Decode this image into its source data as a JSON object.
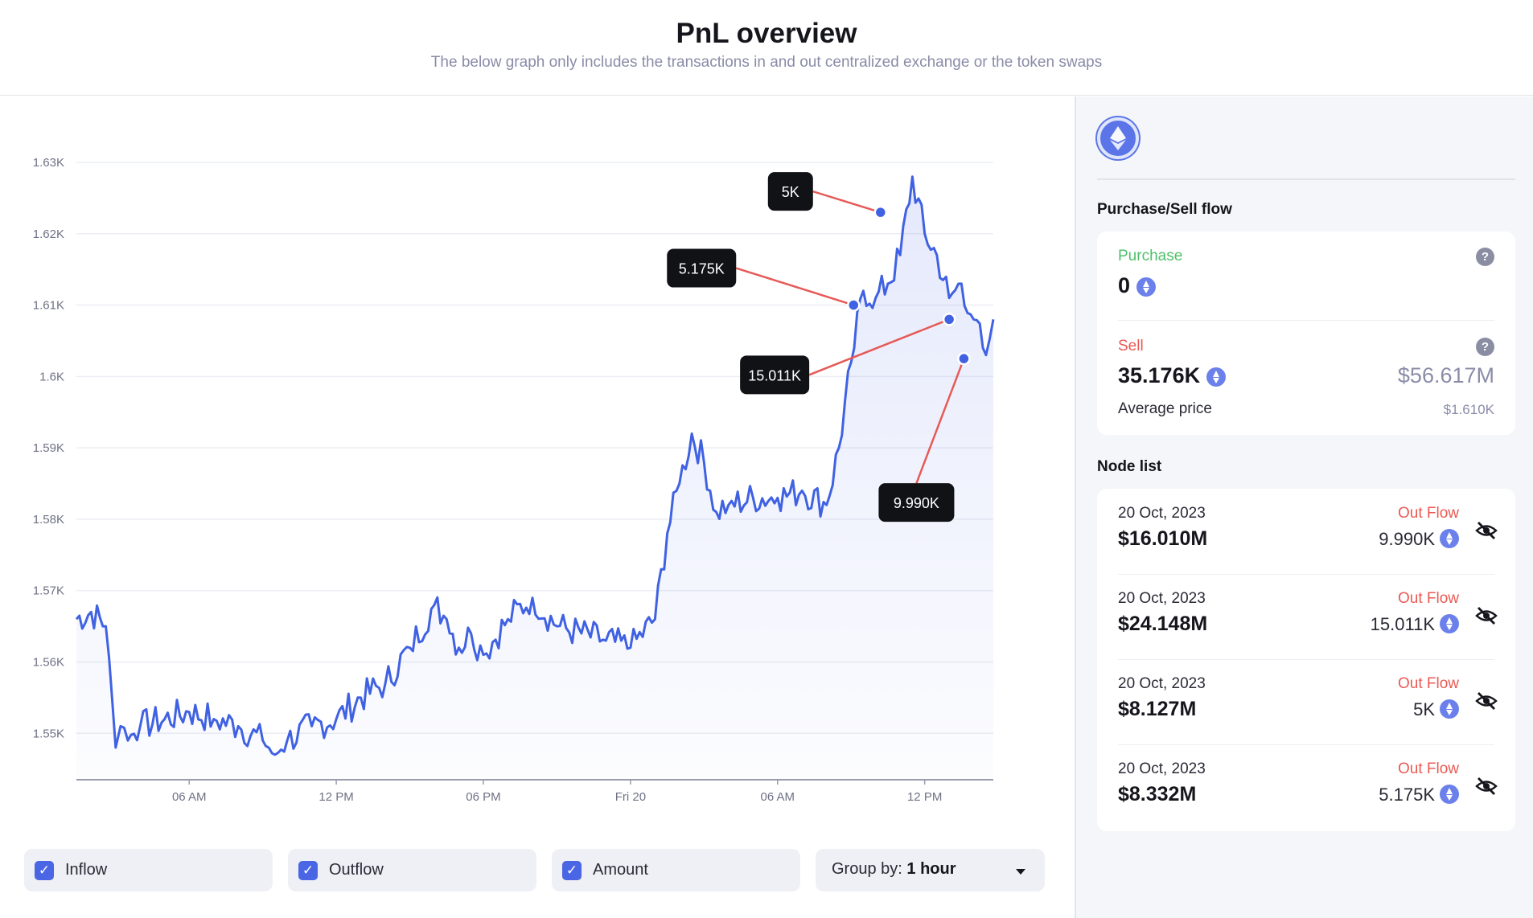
{
  "header": {
    "title": "PnL overview",
    "subtitle": "The below graph only includes the transactions in and out centralized exchange or the token swaps"
  },
  "chart_data": {
    "type": "area",
    "title": "",
    "xlabel": "",
    "ylabel": "",
    "ylim": [
      1.5435,
      1.6318
    ],
    "y_unit": "K",
    "yticks": [
      1.55,
      1.56,
      1.57,
      1.58,
      1.59,
      1.6,
      1.61,
      1.62,
      1.63
    ],
    "ytick_labels": [
      "1.55K",
      "1.56K",
      "1.57K",
      "1.58K",
      "1.59K",
      "1.6K",
      "1.61K",
      "1.62K",
      "1.63K"
    ],
    "xlim": [
      1.4,
      38.8
    ],
    "x_unit": "hours since 19 Oct 2023 00:00",
    "xticks": [
      6,
      12,
      18,
      24,
      30,
      36
    ],
    "xtick_labels": [
      "06 AM",
      "12 PM",
      "06 PM",
      "Fri 20",
      "06 AM",
      "12 PM"
    ],
    "grid": true,
    "series": [
      {
        "name": "",
        "color": "#4062e2",
        "x": [
          1.4,
          2.0,
          2.6,
          3.0,
          3.2,
          3.5,
          4,
          5,
          6,
          7,
          8,
          9,
          9.5,
          10,
          11,
          12,
          13,
          14,
          15,
          16,
          16.5,
          17,
          17.5,
          18,
          19,
          20,
          21,
          22,
          23,
          24,
          25,
          25.5,
          26,
          26.5,
          27,
          27.5,
          28,
          29,
          30,
          31,
          32,
          32.5,
          33,
          33.5,
          34,
          34.5,
          35,
          35.5,
          36,
          36.5,
          37,
          37.5,
          38,
          38.5,
          38.8
        ],
        "values": [
          1.566,
          1.567,
          1.565,
          1.548,
          1.551,
          1.549,
          1.551,
          1.552,
          1.553,
          1.552,
          1.551,
          1.549,
          1.547,
          1.549,
          1.551,
          1.552,
          1.555,
          1.557,
          1.562,
          1.568,
          1.566,
          1.562,
          1.564,
          1.561,
          1.566,
          1.569,
          1.565,
          1.564,
          1.563,
          1.562,
          1.566,
          1.578,
          1.585,
          1.592,
          1.588,
          1.581,
          1.582,
          1.583,
          1.583,
          1.584,
          1.582,
          1.59,
          1.602,
          1.612,
          1.611,
          1.613,
          1.617,
          1.628,
          1.62,
          1.617,
          1.611,
          1.613,
          1.608,
          1.603,
          1.608
        ]
      }
    ],
    "annotations": [
      {
        "label": "5K",
        "x": 34.2,
        "y": 1.623
      },
      {
        "label": "5.175K",
        "x": 33.1,
        "y": 1.61
      },
      {
        "label": "15.011K",
        "x": 37.0,
        "y": 1.608
      },
      {
        "label": "9.990K",
        "x": 37.6,
        "y": 1.6025
      }
    ]
  },
  "controls": {
    "inflow_label": "Inflow",
    "outflow_label": "Outflow",
    "amount_label": "Amount",
    "group_by_label": "Group by:",
    "group_by_value": "1 hour"
  },
  "sidebar": {
    "token_icon": "ethereum-icon",
    "flow_title": "Purchase/Sell flow",
    "purchase": {
      "label": "Purchase",
      "value": "0",
      "color": "#4fc06a"
    },
    "sell": {
      "label": "Sell",
      "value": "35.176K",
      "usd_value": "$56.617M",
      "avg_label": "Average price",
      "avg_value": "$1.610K",
      "color": "#ea5a54"
    },
    "help_glyph": "?",
    "node_list_title": "Node list",
    "nodes": [
      {
        "date": "20 Oct, 2023",
        "value": "$16.010M",
        "flow": "Out Flow",
        "amount": "9.990K"
      },
      {
        "date": "20 Oct, 2023",
        "value": "$24.148M",
        "flow": "Out Flow",
        "amount": "15.011K"
      },
      {
        "date": "20 Oct, 2023",
        "value": "$8.127M",
        "flow": "Out Flow",
        "amount": "5K"
      },
      {
        "date": "20 Oct, 2023",
        "value": "$8.332M",
        "flow": "Out Flow",
        "amount": "5.175K"
      }
    ]
  },
  "colors": {
    "line": "#4062e2",
    "connector": "#e65a57",
    "accent": "#4a66e4",
    "out_flow": "#ea5a54",
    "in_flow": "#4fc06a"
  }
}
